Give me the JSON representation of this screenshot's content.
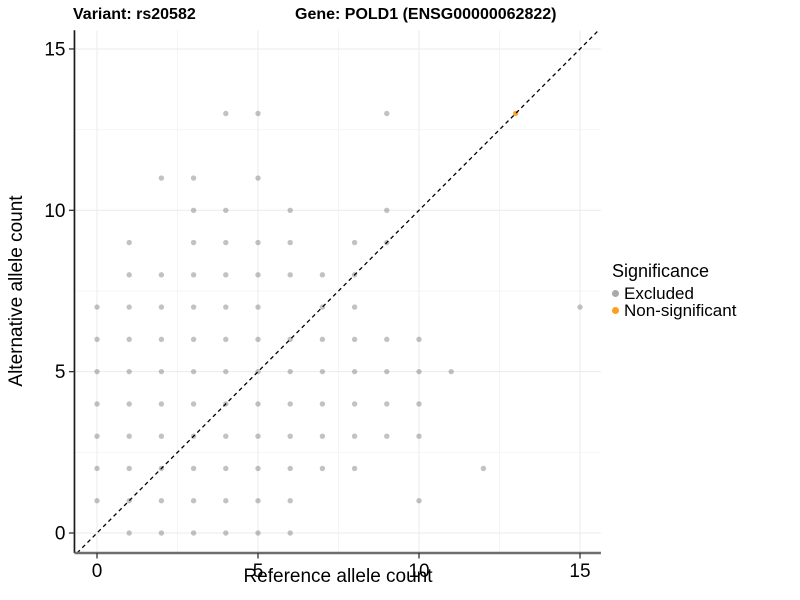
{
  "plot": {
    "title_left": "Variant: rs20582",
    "title_right": "Gene: POLD1 (ENSG00000062822)"
  },
  "chart_data": {
    "type": "scatter",
    "title": "Variant: rs20582   Gene: POLD1 (ENSG00000062822)",
    "xlabel": "Reference allele count",
    "ylabel": "Alternative allele count",
    "x_ticks": [
      0,
      5,
      10,
      15
    ],
    "y_ticks": [
      0,
      5,
      10,
      15
    ],
    "x_minor": [
      2.5,
      7.5,
      12.5
    ],
    "y_minor": [
      2.5,
      7.5,
      12.5
    ],
    "xlim": [
      -0.7,
      15.65
    ],
    "ylim": [
      -0.62,
      15.58
    ],
    "grid": true,
    "legend_position": "right",
    "identity_line": {
      "style": "dashed",
      "slope": 1,
      "intercept": 0,
      "color": "#000000"
    },
    "series": [
      {
        "name": "Excluded",
        "color": "#6e6e6e",
        "opacity": 0.42,
        "points": [
          [
            1,
            0
          ],
          [
            2,
            0
          ],
          [
            3,
            0
          ],
          [
            4,
            0
          ],
          [
            5,
            0
          ],
          [
            6,
            0
          ],
          [
            0,
            1
          ],
          [
            1,
            1
          ],
          [
            2,
            1
          ],
          [
            3,
            1
          ],
          [
            4,
            1
          ],
          [
            5,
            1
          ],
          [
            6,
            1
          ],
          [
            10,
            1
          ],
          [
            0,
            2
          ],
          [
            1,
            2
          ],
          [
            2,
            2
          ],
          [
            3,
            2
          ],
          [
            4,
            2
          ],
          [
            5,
            2
          ],
          [
            6,
            2
          ],
          [
            7,
            2
          ],
          [
            8,
            2
          ],
          [
            12,
            2
          ],
          [
            0,
            3
          ],
          [
            1,
            3
          ],
          [
            2,
            3
          ],
          [
            3,
            3
          ],
          [
            4,
            3
          ],
          [
            5,
            3
          ],
          [
            6,
            3
          ],
          [
            7,
            3
          ],
          [
            8,
            3
          ],
          [
            9,
            3
          ],
          [
            10,
            3
          ],
          [
            0,
            4
          ],
          [
            1,
            4
          ],
          [
            2,
            4
          ],
          [
            3,
            4
          ],
          [
            4,
            4
          ],
          [
            5,
            4
          ],
          [
            6,
            4
          ],
          [
            7,
            4
          ],
          [
            8,
            4
          ],
          [
            9,
            4
          ],
          [
            10,
            4
          ],
          [
            0,
            5
          ],
          [
            1,
            5
          ],
          [
            2,
            5
          ],
          [
            3,
            5
          ],
          [
            4,
            5
          ],
          [
            5,
            5
          ],
          [
            6,
            5
          ],
          [
            7,
            5
          ],
          [
            8,
            5
          ],
          [
            9,
            5
          ],
          [
            10,
            5
          ],
          [
            11,
            5
          ],
          [
            0,
            6
          ],
          [
            1,
            6
          ],
          [
            2,
            6
          ],
          [
            3,
            6
          ],
          [
            4,
            6
          ],
          [
            5,
            6
          ],
          [
            6,
            6
          ],
          [
            7,
            6
          ],
          [
            8,
            6
          ],
          [
            9,
            6
          ],
          [
            10,
            6
          ],
          [
            0,
            7
          ],
          [
            1,
            7
          ],
          [
            2,
            7
          ],
          [
            3,
            7
          ],
          [
            4,
            7
          ],
          [
            5,
            7
          ],
          [
            7,
            7
          ],
          [
            8,
            7
          ],
          [
            15,
            7
          ],
          [
            1,
            8
          ],
          [
            2,
            8
          ],
          [
            3,
            8
          ],
          [
            4,
            8
          ],
          [
            5,
            8
          ],
          [
            6,
            8
          ],
          [
            7,
            8
          ],
          [
            8,
            8
          ],
          [
            1,
            9
          ],
          [
            3,
            9
          ],
          [
            4,
            9
          ],
          [
            5,
            9
          ],
          [
            6,
            9
          ],
          [
            8,
            9
          ],
          [
            9,
            9
          ],
          [
            3,
            10
          ],
          [
            4,
            10
          ],
          [
            6,
            10
          ],
          [
            9,
            10
          ],
          [
            2,
            11
          ],
          [
            3,
            11
          ],
          [
            5,
            11
          ],
          [
            4,
            13
          ],
          [
            5,
            13
          ],
          [
            9,
            13
          ]
        ]
      },
      {
        "name": "Non-significant",
        "color": "#F9A11C",
        "opacity": 0.9,
        "points": [
          [
            13,
            13
          ]
        ]
      }
    ]
  },
  "legend": {
    "title": "Significance",
    "items": [
      {
        "label": "Excluded",
        "color": "#A9A9A9"
      },
      {
        "label": "Non-significant",
        "color": "#F9A11C"
      }
    ]
  }
}
